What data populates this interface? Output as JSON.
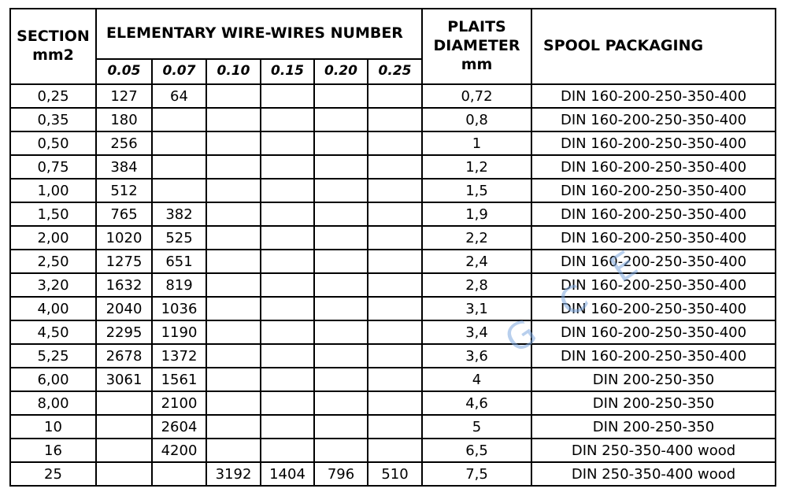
{
  "watermark": {
    "text": "G C E",
    "color": "#7fa9e0"
  },
  "table": {
    "headers": {
      "section": "SECTION\nmm2",
      "elementary_title": "ELEMENTARY WIRE-WIRES NUMBER",
      "wire_sizes": [
        "0.05",
        "0.07",
        "0.10",
        "0.15",
        "0.20",
        "0.25"
      ],
      "plaits": "PLAITS\nDIAMETER\nmm",
      "spool": "SPOOL PACKAGING"
    },
    "rows": [
      {
        "section": "0,25",
        "wires": [
          "127",
          "64",
          "",
          "",
          "",
          ""
        ],
        "diameter": "0,72",
        "spool": "DIN 160-200-250-350-400"
      },
      {
        "section": "0,35",
        "wires": [
          "180",
          "",
          "",
          "",
          "",
          ""
        ],
        "diameter": "0,8",
        "spool": "DIN 160-200-250-350-400"
      },
      {
        "section": "0,50",
        "wires": [
          "256",
          "",
          "",
          "",
          "",
          ""
        ],
        "diameter": "1",
        "spool": "DIN 160-200-250-350-400"
      },
      {
        "section": "0,75",
        "wires": [
          "384",
          "",
          "",
          "",
          "",
          ""
        ],
        "diameter": "1,2",
        "spool": "DIN 160-200-250-350-400"
      },
      {
        "section": "1,00",
        "wires": [
          "512",
          "",
          "",
          "",
          "",
          ""
        ],
        "diameter": "1,5",
        "spool": "DIN 160-200-250-350-400"
      },
      {
        "section": "1,50",
        "wires": [
          "765",
          "382",
          "",
          "",
          "",
          ""
        ],
        "diameter": "1,9",
        "spool": "DIN 160-200-250-350-400"
      },
      {
        "section": "2,00",
        "wires": [
          "1020",
          "525",
          "",
          "",
          "",
          ""
        ],
        "diameter": "2,2",
        "spool": "DIN 160-200-250-350-400"
      },
      {
        "section": "2,50",
        "wires": [
          "1275",
          "651",
          "",
          "",
          "",
          ""
        ],
        "diameter": "2,4",
        "spool": "DIN 160-200-250-350-400"
      },
      {
        "section": "3,20",
        "wires": [
          "1632",
          "819",
          "",
          "",
          "",
          ""
        ],
        "diameter": "2,8",
        "spool": "DIN 160-200-250-350-400"
      },
      {
        "section": "4,00",
        "wires": [
          "2040",
          "1036",
          "",
          "",
          "",
          ""
        ],
        "diameter": "3,1",
        "spool": "DIN 160-200-250-350-400"
      },
      {
        "section": "4,50",
        "wires": [
          "2295",
          "1190",
          "",
          "",
          "",
          ""
        ],
        "diameter": "3,4",
        "spool": "DIN 160-200-250-350-400"
      },
      {
        "section": "5,25",
        "wires": [
          "2678",
          "1372",
          "",
          "",
          "",
          ""
        ],
        "diameter": "3,6",
        "spool": "DIN 160-200-250-350-400"
      },
      {
        "section": "6,00",
        "wires": [
          "3061",
          "1561",
          "",
          "",
          "",
          ""
        ],
        "diameter": "4",
        "spool": "DIN 200-250-350"
      },
      {
        "section": "8,00",
        "wires": [
          "",
          "2100",
          "",
          "",
          "",
          ""
        ],
        "diameter": "4,6",
        "spool": "DIN 200-250-350"
      },
      {
        "section": "10",
        "wires": [
          "",
          "2604",
          "",
          "",
          "",
          ""
        ],
        "diameter": "5",
        "spool": "DIN 200-250-350"
      },
      {
        "section": "16",
        "wires": [
          "",
          "4200",
          "",
          "",
          "",
          ""
        ],
        "diameter": "6,5",
        "spool": "DIN 250-350-400 wood"
      },
      {
        "section": "25",
        "wires": [
          "",
          "",
          "3192",
          "1404",
          "796",
          "510"
        ],
        "diameter": "7,5",
        "spool": "DIN 250-350-400 wood"
      }
    ]
  }
}
